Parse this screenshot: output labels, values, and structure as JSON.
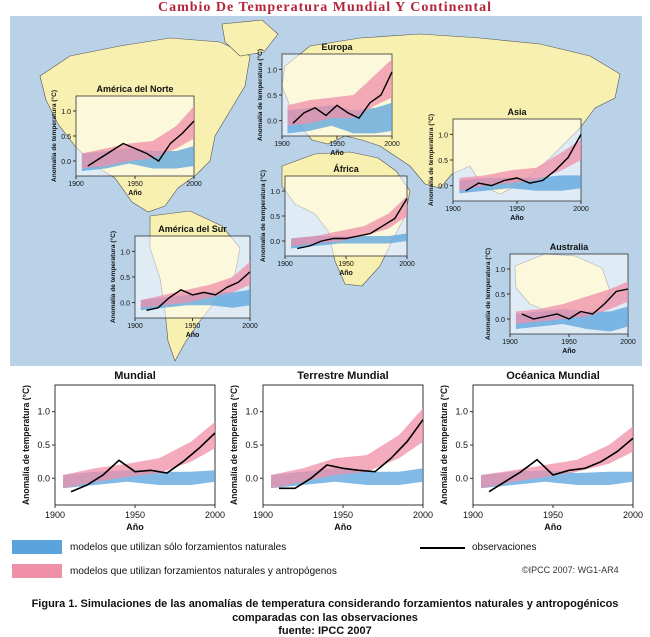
{
  "title": "Cambio De Temperatura Mundial Y Continental",
  "colors": {
    "natural": "#5aa3dc",
    "anthropogenic": "#f08fa8",
    "observations": "#000000",
    "land": "#f8f0b0",
    "ocean": "#b9d2e8",
    "title": "#b3263a"
  },
  "legend": {
    "natural": "modelos que utilizan sólo forzamientos naturales",
    "anthropogenic": "modelos que utilizan forzamientos naturales y antropógenos",
    "observations": "observaciones"
  },
  "copyright": "©IPCC 2007: WG1-AR4",
  "caption": {
    "line1": "Figura 1. Simulaciones de las anomalías de temperatura considerando forzamientos naturales y antropogénicos",
    "line2": "comparadas con las observaciones",
    "line3": "fuente: IPCC 2007"
  },
  "chart_data": [
    {
      "type": "line",
      "title": "América del Norte",
      "xlabel": "Año",
      "ylabel": "Anomalía de temperatura (°C)",
      "xlim": [
        1900,
        2000
      ],
      "ylim": [
        -0.3,
        1.3
      ],
      "xticks": [
        1900,
        1950,
        2000
      ],
      "xtick_labels": [
        "1900",
        "1950",
        "2000"
      ],
      "yticks": [
        0,
        0.5,
        1.0
      ],
      "ytick_labels": [
        "0.0",
        "0.5",
        "1.0"
      ],
      "observations": {
        "x": [
          1910,
          1920,
          1930,
          1940,
          1950,
          1960,
          1970,
          1980,
          1990,
          2000
        ],
        "y": [
          -0.1,
          0.05,
          0.2,
          0.35,
          0.25,
          0.15,
          0.0,
          0.35,
          0.55,
          0.8
        ]
      },
      "natural": {
        "x": [
          1905,
          1925,
          1945,
          1965,
          1985,
          2000
        ],
        "low": [
          -0.2,
          -0.15,
          -0.05,
          -0.15,
          -0.15,
          -0.1
        ],
        "high": [
          0.15,
          0.2,
          0.25,
          0.2,
          0.2,
          0.3
        ]
      },
      "anthropogenic": {
        "x": [
          1905,
          1925,
          1945,
          1965,
          1985,
          2000
        ],
        "low": [
          -0.15,
          -0.1,
          0.0,
          0.05,
          0.25,
          0.45
        ],
        "high": [
          0.15,
          0.25,
          0.35,
          0.4,
          0.7,
          1.1
        ]
      }
    },
    {
      "type": "line",
      "title": "Europa",
      "xlabel": "Año",
      "ylabel": "Anomalía de temperatura (°C)",
      "xlim": [
        1900,
        2000
      ],
      "ylim": [
        -0.3,
        1.3
      ],
      "xticks": [
        1900,
        1950,
        2000
      ],
      "xtick_labels": [
        "1900",
        "1950",
        "2000"
      ],
      "yticks": [
        0,
        0.5,
        1.0
      ],
      "ytick_labels": [
        "0.0",
        "0.5",
        "1.0"
      ],
      "observations": {
        "x": [
          1910,
          1920,
          1930,
          1940,
          1950,
          1960,
          1970,
          1980,
          1990,
          2000
        ],
        "y": [
          -0.05,
          0.15,
          0.25,
          0.1,
          0.3,
          0.15,
          0.05,
          0.35,
          0.5,
          0.95
        ]
      },
      "natural": {
        "x": [
          1905,
          1925,
          1945,
          1965,
          1985,
          2000
        ],
        "low": [
          -0.25,
          -0.2,
          -0.1,
          -0.25,
          -0.25,
          -0.2
        ],
        "high": [
          0.2,
          0.25,
          0.3,
          0.2,
          0.25,
          0.35
        ]
      },
      "anthropogenic": {
        "x": [
          1905,
          1925,
          1945,
          1965,
          1985,
          2000
        ],
        "low": [
          -0.1,
          -0.05,
          0.05,
          0.05,
          0.3,
          0.45
        ],
        "high": [
          0.3,
          0.4,
          0.45,
          0.5,
          0.9,
          1.2
        ]
      }
    },
    {
      "type": "line",
      "title": "Asia",
      "xlabel": "Año",
      "ylabel": "Anomalía de temperatura (°C)",
      "xlim": [
        1900,
        2000
      ],
      "ylim": [
        -0.3,
        1.3
      ],
      "xticks": [
        1900,
        1950,
        2000
      ],
      "xtick_labels": [
        "1900",
        "1950",
        "2000"
      ],
      "yticks": [
        0,
        0.5,
        1.0
      ],
      "ytick_labels": [
        "0.0",
        "0.5",
        "1.0"
      ],
      "observations": {
        "x": [
          1910,
          1920,
          1930,
          1940,
          1950,
          1960,
          1970,
          1980,
          1990,
          2000
        ],
        "y": [
          -0.1,
          0.05,
          0.0,
          0.1,
          0.15,
          0.05,
          0.1,
          0.3,
          0.55,
          1.0
        ]
      },
      "natural": {
        "x": [
          1905,
          1925,
          1945,
          1965,
          1985,
          2000
        ],
        "low": [
          -0.15,
          -0.1,
          -0.05,
          -0.1,
          -0.1,
          -0.05
        ],
        "high": [
          0.1,
          0.15,
          0.15,
          0.15,
          0.2,
          0.2
        ]
      },
      "anthropogenic": {
        "x": [
          1905,
          1925,
          1945,
          1965,
          1985,
          2000
        ],
        "low": [
          -0.1,
          0.0,
          0.05,
          0.1,
          0.3,
          0.5
        ],
        "high": [
          0.15,
          0.2,
          0.3,
          0.35,
          0.65,
          0.9
        ]
      }
    },
    {
      "type": "line",
      "title": "África",
      "xlabel": "Año",
      "ylabel": "Anomalía de temperatura (°C)",
      "xlim": [
        1900,
        2000
      ],
      "ylim": [
        -0.3,
        1.3
      ],
      "xticks": [
        1900,
        1950,
        2000
      ],
      "xtick_labels": [
        "1900",
        "1950",
        "2000"
      ],
      "yticks": [
        0,
        0.5,
        1.0
      ],
      "ytick_labels": [
        "0.0",
        "0.5",
        "1.0"
      ],
      "observations": {
        "x": [
          1910,
          1920,
          1930,
          1940,
          1950,
          1960,
          1970,
          1980,
          1990,
          2000
        ],
        "y": [
          -0.15,
          -0.1,
          0.0,
          0.05,
          0.05,
          0.1,
          0.15,
          0.3,
          0.45,
          0.85
        ]
      },
      "natural": {
        "x": [
          1905,
          1925,
          1945,
          1965,
          1985,
          2000
        ],
        "low": [
          -0.15,
          -0.1,
          -0.05,
          -0.05,
          -0.05,
          0.0
        ],
        "high": [
          0.05,
          0.1,
          0.1,
          0.1,
          0.1,
          0.15
        ]
      },
      "anthropogenic": {
        "x": [
          1905,
          1925,
          1945,
          1965,
          1985,
          2000
        ],
        "low": [
          -0.1,
          -0.05,
          0.0,
          0.1,
          0.25,
          0.5
        ],
        "high": [
          0.05,
          0.1,
          0.2,
          0.3,
          0.55,
          0.9
        ]
      }
    },
    {
      "type": "line",
      "title": "América del Sur",
      "xlabel": "Año",
      "ylabel": "Anomalía de temperatura (°C)",
      "xlim": [
        1900,
        2000
      ],
      "ylim": [
        -0.3,
        1.3
      ],
      "xticks": [
        1900,
        1950,
        2000
      ],
      "xtick_labels": [
        "1900",
        "1950",
        "2000"
      ],
      "yticks": [
        0,
        0.5,
        1.0
      ],
      "ytick_labels": [
        "0.0",
        "0.5",
        "1.0"
      ],
      "observations": {
        "x": [
          1910,
          1920,
          1930,
          1940,
          1950,
          1960,
          1970,
          1980,
          1990,
          2000
        ],
        "y": [
          -0.15,
          -0.1,
          0.1,
          0.25,
          0.15,
          0.2,
          0.15,
          0.3,
          0.4,
          0.6
        ]
      },
      "natural": {
        "x": [
          1905,
          1925,
          1945,
          1965,
          1985,
          2000
        ],
        "low": [
          -0.15,
          -0.1,
          -0.05,
          -0.05,
          -0.1,
          -0.05
        ],
        "high": [
          0.05,
          0.1,
          0.15,
          0.2,
          0.2,
          0.25
        ]
      },
      "anthropogenic": {
        "x": [
          1905,
          1925,
          1945,
          1965,
          1985,
          2000
        ],
        "low": [
          -0.1,
          -0.05,
          0.0,
          0.1,
          0.2,
          0.35
        ],
        "high": [
          0.05,
          0.15,
          0.25,
          0.35,
          0.5,
          0.8
        ]
      }
    },
    {
      "type": "line",
      "title": "Australia",
      "xlabel": "Año",
      "ylabel": "Anomalía de temperatura (°C)",
      "xlim": [
        1900,
        2000
      ],
      "ylim": [
        -0.3,
        1.3
      ],
      "xticks": [
        1900,
        1950,
        2000
      ],
      "xtick_labels": [
        "1900",
        "1950",
        "2000"
      ],
      "yticks": [
        0,
        0.5,
        1.0
      ],
      "ytick_labels": [
        "0.0",
        "0.5",
        "1.0"
      ],
      "observations": {
        "x": [
          1910,
          1920,
          1930,
          1940,
          1950,
          1960,
          1970,
          1980,
          1990,
          2000
        ],
        "y": [
          0.1,
          0.0,
          0.05,
          0.1,
          0.0,
          0.15,
          0.1,
          0.3,
          0.55,
          0.6
        ]
      },
      "natural": {
        "x": [
          1905,
          1925,
          1945,
          1965,
          1985,
          2000
        ],
        "low": [
          -0.2,
          -0.15,
          -0.1,
          -0.2,
          -0.25,
          -0.15
        ],
        "high": [
          0.1,
          0.15,
          0.2,
          0.15,
          0.15,
          0.25
        ]
      },
      "anthropogenic": {
        "x": [
          1905,
          1925,
          1945,
          1965,
          1985,
          2000
        ],
        "low": [
          -0.1,
          -0.05,
          0.0,
          0.05,
          0.2,
          0.35
        ],
        "high": [
          0.15,
          0.2,
          0.3,
          0.45,
          0.6,
          0.75
        ]
      }
    },
    {
      "type": "line",
      "title": "Mundial",
      "xlabel": "Año",
      "ylabel": "Anomalía de temperatura (°C)",
      "xlim": [
        1900,
        2000
      ],
      "ylim": [
        -0.4,
        1.4
      ],
      "xticks": [
        1900,
        1950,
        2000
      ],
      "xtick_labels": [
        "1900",
        "1950",
        "2000"
      ],
      "yticks": [
        0,
        0.5,
        1.0
      ],
      "ytick_labels": [
        "0.0",
        "0.5",
        "1.0"
      ],
      "observations": {
        "x": [
          1910,
          1920,
          1930,
          1940,
          1950,
          1960,
          1970,
          1980,
          1990,
          2000
        ],
        "y": [
          -0.2,
          -0.1,
          0.05,
          0.27,
          0.1,
          0.12,
          0.08,
          0.25,
          0.45,
          0.68
        ]
      },
      "natural": {
        "x": [
          1905,
          1925,
          1945,
          1965,
          1985,
          2000
        ],
        "low": [
          -0.15,
          -0.1,
          -0.05,
          -0.1,
          -0.1,
          -0.05
        ],
        "high": [
          0.05,
          0.1,
          0.12,
          0.1,
          0.1,
          0.12
        ]
      },
      "anthropogenic": {
        "x": [
          1905,
          1925,
          1945,
          1965,
          1985,
          2000
        ],
        "low": [
          -0.15,
          -0.05,
          0.02,
          0.08,
          0.25,
          0.45
        ],
        "high": [
          0.05,
          0.15,
          0.22,
          0.3,
          0.55,
          0.85
        ]
      }
    },
    {
      "type": "line",
      "title": "Terrestre Mundial",
      "xlabel": "Año",
      "ylabel": "Anomalía de temperatura (°C)",
      "xlim": [
        1900,
        2000
      ],
      "ylim": [
        -0.4,
        1.4
      ],
      "xticks": [
        1900,
        1950,
        2000
      ],
      "xtick_labels": [
        "1900",
        "1950",
        "2000"
      ],
      "yticks": [
        0,
        0.5,
        1.0
      ],
      "ytick_labels": [
        "0.0",
        "0.5",
        "1.0"
      ],
      "observations": {
        "x": [
          1910,
          1920,
          1930,
          1940,
          1950,
          1960,
          1970,
          1980,
          1990,
          2000
        ],
        "y": [
          -0.15,
          -0.15,
          0.0,
          0.2,
          0.15,
          0.12,
          0.1,
          0.3,
          0.55,
          0.88
        ]
      },
      "natural": {
        "x": [
          1905,
          1925,
          1945,
          1965,
          1985,
          2000
        ],
        "low": [
          -0.15,
          -0.1,
          -0.05,
          -0.1,
          -0.1,
          -0.05
        ],
        "high": [
          0.05,
          0.1,
          0.15,
          0.1,
          0.1,
          0.15
        ]
      },
      "anthropogenic": {
        "x": [
          1905,
          1925,
          1945,
          1965,
          1985,
          2000
        ],
        "low": [
          -0.15,
          -0.05,
          0.05,
          0.1,
          0.3,
          0.55
        ],
        "high": [
          0.05,
          0.15,
          0.3,
          0.35,
          0.65,
          1.05
        ]
      }
    },
    {
      "type": "line",
      "title": "Océanica Mundial",
      "xlabel": "Año",
      "ylabel": "Anomalía de temperatura (°C)",
      "xlim": [
        1900,
        2000
      ],
      "ylim": [
        -0.4,
        1.4
      ],
      "xticks": [
        1900,
        1950,
        2000
      ],
      "xtick_labels": [
        "1900",
        "1950",
        "2000"
      ],
      "yticks": [
        0,
        0.5,
        1.0
      ],
      "ytick_labels": [
        "0.0",
        "0.5",
        "1.0"
      ],
      "observations": {
        "x": [
          1910,
          1920,
          1930,
          1940,
          1950,
          1960,
          1970,
          1980,
          1990,
          2000
        ],
        "y": [
          -0.2,
          -0.05,
          0.1,
          0.28,
          0.05,
          0.12,
          0.15,
          0.25,
          0.4,
          0.6
        ]
      },
      "natural": {
        "x": [
          1905,
          1925,
          1945,
          1965,
          1985,
          2000
        ],
        "low": [
          -0.15,
          -0.1,
          -0.05,
          -0.1,
          -0.1,
          -0.05
        ],
        "high": [
          0.05,
          0.1,
          0.12,
          0.08,
          0.1,
          0.1
        ]
      },
      "anthropogenic": {
        "x": [
          1905,
          1925,
          1945,
          1965,
          1985,
          2000
        ],
        "low": [
          -0.15,
          -0.05,
          0.02,
          0.1,
          0.22,
          0.4
        ],
        "high": [
          0.05,
          0.12,
          0.2,
          0.28,
          0.5,
          0.78
        ]
      }
    }
  ]
}
